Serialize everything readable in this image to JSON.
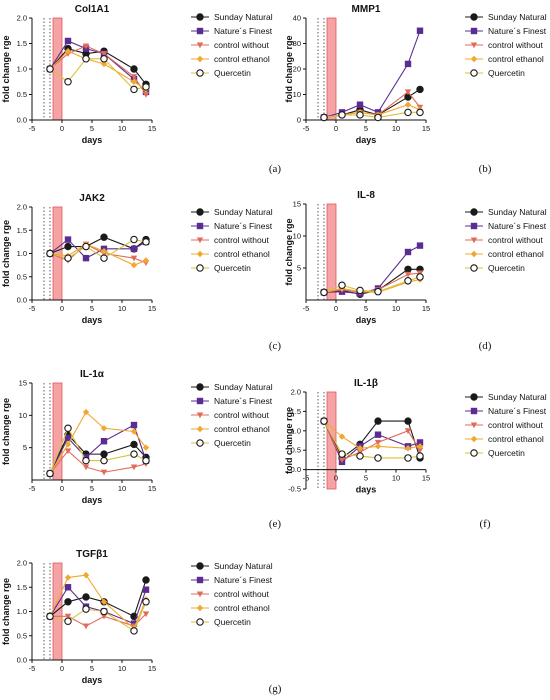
{
  "figure": {
    "captions": [
      "(a)",
      "(b)",
      "(c)",
      "(d)",
      "(e)",
      "(f)",
      "(g)"
    ]
  },
  "legend": {
    "entries": [
      {
        "name": "Sunday Natural",
        "color": "#1a1a1a",
        "marker": "circle-filled"
      },
      {
        "name": "Nature´s Finest",
        "color": "#5b2c91",
        "marker": "square"
      },
      {
        "name": "control without",
        "color": "#e06b5a",
        "marker": "triangle-down"
      },
      {
        "name": "control ethanol",
        "color": "#f0a830",
        "marker": "diamond"
      },
      {
        "name": "Quercetin",
        "color": "#d9c23a",
        "marker": "circle-open"
      }
    ]
  },
  "chart_data": [
    {
      "type": "line",
      "title": "Col1A1",
      "xlabel": "days",
      "ylabel": "fold change rge",
      "xlim": [
        -5,
        15
      ],
      "ylim": [
        0.0,
        2.0
      ],
      "xticks": [
        -5,
        0,
        5,
        10,
        15
      ],
      "yticks": [
        0.0,
        0.5,
        1.0,
        1.5,
        2.0
      ],
      "shade": [
        -1.5,
        0
      ],
      "dotted": [
        -3,
        -2
      ],
      "x": [
        -2,
        1,
        4,
        7,
        12,
        14
      ],
      "series": [
        {
          "name": "Sunday Natural",
          "values": [
            1.0,
            1.4,
            1.3,
            1.35,
            1.0,
            0.7
          ]
        },
        {
          "name": "Nature´s Finest",
          "values": [
            1.0,
            1.55,
            1.4,
            1.3,
            0.8,
            0.55
          ]
        },
        {
          "name": "control without",
          "values": [
            1.0,
            1.3,
            1.45,
            1.3,
            0.85,
            0.5
          ]
        },
        {
          "name": "control ethanol",
          "values": [
            1.0,
            1.35,
            1.2,
            1.1,
            0.75,
            0.6
          ]
        },
        {
          "name": "Quercetin",
          "values": [
            1.0,
            0.75,
            1.2,
            1.2,
            0.6,
            0.65
          ]
        }
      ]
    },
    {
      "type": "line",
      "title": "MMP1",
      "xlabel": "days",
      "ylabel": "fold change rge",
      "xlim": [
        -5,
        15
      ],
      "ylim": [
        0,
        40
      ],
      "xticks": [
        -5,
        0,
        5,
        10,
        15
      ],
      "yticks": [
        0,
        10,
        20,
        30,
        40
      ],
      "shade": [
        -1.5,
        0
      ],
      "dotted": [
        -3,
        -2
      ],
      "x": [
        -2,
        1,
        4,
        7,
        12,
        14
      ],
      "series": [
        {
          "name": "Sunday Natural",
          "values": [
            1,
            2,
            4,
            2,
            9,
            12
          ]
        },
        {
          "name": "Nature´s Finest",
          "values": [
            1,
            3,
            6,
            3,
            22,
            35
          ]
        },
        {
          "name": "control without",
          "values": [
            1,
            2,
            3,
            2,
            11,
            5
          ]
        },
        {
          "name": "control ethanol",
          "values": [
            1,
            2,
            3,
            2,
            6,
            4
          ]
        },
        {
          "name": "Quercetin",
          "values": [
            1,
            2,
            2,
            1,
            3,
            3
          ]
        }
      ]
    },
    {
      "type": "line",
      "title": "JAK2",
      "xlabel": "days",
      "ylabel": "fold change rge",
      "xlim": [
        -5,
        15
      ],
      "ylim": [
        0.0,
        2.0
      ],
      "xticks": [
        -5,
        0,
        5,
        10,
        15
      ],
      "yticks": [
        0.0,
        0.5,
        1.0,
        1.5,
        2.0
      ],
      "shade": [
        -1.5,
        0
      ],
      "dotted": [
        -3,
        -2
      ],
      "x": [
        -2,
        1,
        4,
        7,
        12,
        14
      ],
      "series": [
        {
          "name": "Sunday Natural",
          "values": [
            1.0,
            1.15,
            1.15,
            1.35,
            1.1,
            1.3
          ]
        },
        {
          "name": "Nature´s Finest",
          "values": [
            1.0,
            1.3,
            0.9,
            1.1,
            1.1,
            1.25
          ]
        },
        {
          "name": "control without",
          "values": [
            1.0,
            0.85,
            1.2,
            1.0,
            0.9,
            0.8
          ]
        },
        {
          "name": "control ethanol",
          "values": [
            1.0,
            0.95,
            1.2,
            1.05,
            0.75,
            0.85
          ]
        },
        {
          "name": "Quercetin",
          "values": [
            1.0,
            0.9,
            1.15,
            0.9,
            1.3,
            1.25
          ]
        }
      ]
    },
    {
      "type": "line",
      "title": "IL-8",
      "xlabel": "days",
      "ylabel": "fold change rge",
      "xlim": [
        -5,
        15
      ],
      "ylim": [
        0,
        15
      ],
      "xticks": [
        -5,
        0,
        5,
        10,
        15
      ],
      "yticks": [
        5,
        10,
        15
      ],
      "shade": [
        -1.5,
        0
      ],
      "dotted": [
        -3,
        -2
      ],
      "x": [
        -2,
        1,
        4,
        7,
        12,
        14
      ],
      "series": [
        {
          "name": "Sunday Natural",
          "values": [
            1.2,
            1.5,
            0.9,
            1.5,
            4.8,
            4.8
          ]
        },
        {
          "name": "Nature´s Finest",
          "values": [
            1.2,
            1.3,
            1.0,
            1.8,
            7.5,
            8.5
          ]
        },
        {
          "name": "control without",
          "values": [
            1.2,
            1.6,
            1.2,
            1.6,
            4.0,
            4.2
          ]
        },
        {
          "name": "control ethanol",
          "values": [
            1.2,
            1.8,
            1.3,
            1.2,
            2.8,
            3.2
          ]
        },
        {
          "name": "Quercetin",
          "values": [
            1.2,
            2.3,
            1.5,
            1.3,
            3.0,
            3.6
          ]
        }
      ]
    },
    {
      "type": "line",
      "title": "IL-1α",
      "xlabel": "days",
      "ylabel": "fold change rge",
      "xlim": [
        -5,
        15
      ],
      "ylim": [
        0,
        15
      ],
      "xticks": [
        -5,
        0,
        5,
        10,
        15
      ],
      "yticks": [
        5,
        10,
        15
      ],
      "shade": [
        -1.5,
        0
      ],
      "dotted": [
        -3,
        -2
      ],
      "x": [
        -2,
        1,
        4,
        7,
        12,
        14
      ],
      "series": [
        {
          "name": "Sunday Natural",
          "values": [
            1,
            7,
            4,
            4,
            5.5,
            3.5
          ]
        },
        {
          "name": "Nature´s Finest",
          "values": [
            1,
            6.5,
            3.5,
            6,
            8.5,
            3
          ]
        },
        {
          "name": "control without",
          "values": [
            1,
            4.5,
            2,
            1.2,
            2,
            2.5
          ]
        },
        {
          "name": "control ethanol",
          "values": [
            1,
            5.5,
            10.5,
            8,
            7.5,
            5
          ]
        },
        {
          "name": "Quercetin",
          "values": [
            1,
            8,
            3,
            3,
            4,
            3
          ]
        }
      ]
    },
    {
      "type": "line",
      "title": "IL-1β",
      "xlabel": "days",
      "ylabel": "fold change rge",
      "xlim": [
        -5,
        15
      ],
      "ylim": [
        -0.5,
        2.0
      ],
      "xticks": [
        -5,
        0,
        5,
        10,
        15
      ],
      "yticks": [
        -0.5,
        0.0,
        0.5,
        1.0,
        1.5,
        2.0
      ],
      "shade": [
        -1.5,
        0
      ],
      "dotted": [
        -3,
        -2
      ],
      "x": [
        -2,
        1,
        4,
        7,
        12,
        14
      ],
      "series": [
        {
          "name": "Sunday Natural",
          "values": [
            1.25,
            0.3,
            0.65,
            1.25,
            1.25,
            0.3
          ]
        },
        {
          "name": "Nature´s Finest",
          "values": [
            1.25,
            0.2,
            0.6,
            0.9,
            0.6,
            0.7
          ]
        },
        {
          "name": "control without",
          "values": [
            1.25,
            0.25,
            0.45,
            0.7,
            1.0,
            0.5
          ]
        },
        {
          "name": "control ethanol",
          "values": [
            1.25,
            0.85,
            0.55,
            0.6,
            0.55,
            0.6
          ]
        },
        {
          "name": "Quercetin",
          "values": [
            1.25,
            0.4,
            0.35,
            0.3,
            0.3,
            0.35
          ]
        }
      ]
    },
    {
      "type": "line",
      "title": "TGFβ1",
      "xlabel": "days",
      "ylabel": "fold change rge",
      "xlim": [
        -5,
        15
      ],
      "ylim": [
        0.0,
        2.0
      ],
      "xticks": [
        -5,
        0,
        5,
        10,
        15
      ],
      "yticks": [
        0.0,
        0.5,
        1.0,
        1.5,
        2.0
      ],
      "shade": [
        -1.5,
        0
      ],
      "dotted": [
        -3,
        -2
      ],
      "x": [
        -2,
        1,
        4,
        7,
        12,
        14
      ],
      "series": [
        {
          "name": "Sunday Natural",
          "values": [
            0.9,
            1.2,
            1.3,
            1.2,
            0.9,
            1.65
          ]
        },
        {
          "name": "Nature´s Finest",
          "values": [
            0.9,
            1.5,
            1.1,
            1.0,
            0.75,
            1.45
          ]
        },
        {
          "name": "control without",
          "values": [
            0.9,
            0.9,
            0.7,
            0.9,
            0.7,
            0.95
          ]
        },
        {
          "name": "control ethanol",
          "values": [
            0.9,
            1.7,
            1.75,
            1.2,
            0.65,
            1.25
          ]
        },
        {
          "name": "Quercetin",
          "values": [
            0.9,
            0.8,
            1.05,
            1.0,
            0.6,
            1.2
          ]
        }
      ]
    }
  ]
}
